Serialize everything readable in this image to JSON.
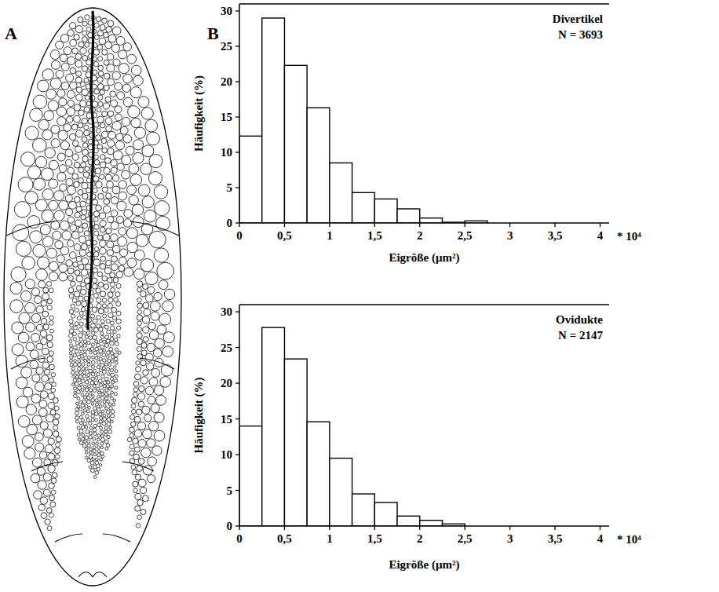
{
  "panel_labels": [
    "A",
    "B"
  ],
  "chart_data": [
    {
      "type": "histogram",
      "title": "Divertikel",
      "subtitle": "N = 3693",
      "x_label": "Eigröße (µm²)",
      "y_label": "Häufigkeit (%)",
      "annotation": "* 10⁴",
      "bins": [
        0,
        0.25,
        0.5,
        0.75,
        1,
        1.25,
        1.5,
        1.75,
        2,
        2.25,
        2.5,
        2.75,
        3,
        3.25,
        3.5,
        3.75,
        4
      ],
      "values": [
        12.3,
        29,
        22.3,
        16.3,
        8.5,
        4.3,
        3.4,
        2.0,
        0.7,
        0.1,
        0.3,
        0,
        0,
        0,
        0,
        0
      ],
      "color": "#ffffff",
      "xlim": [
        0,
        4.1
      ],
      "ylim": [
        0,
        31
      ],
      "xticks": [
        0,
        {
          "value": 0.5,
          "label": "0,5"
        },
        1,
        {
          "value": 1.5,
          "label": "1,5"
        },
        2,
        {
          "value": 2.5,
          "label": "2,5"
        },
        3,
        {
          "value": 3.5,
          "label": "3,5"
        },
        4
      ],
      "yticks": [
        0,
        5,
        10,
        15,
        20,
        25,
        30
      ],
      "grid": false
    },
    {
      "type": "histogram",
      "title": "Ovidukte",
      "subtitle": "N = 2147",
      "x_label": "Eigröße (µm²)",
      "y_label": "Häufigkeit (%)",
      "annotation": "* 10⁴",
      "bins": [
        0,
        0.25,
        0.5,
        0.75,
        1,
        1.25,
        1.5,
        1.75,
        2,
        2.25,
        2.5,
        2.75,
        3,
        3.25,
        3.5,
        3.75,
        4
      ],
      "values": [
        14,
        27.8,
        23.4,
        14.6,
        9.5,
        4.5,
        3.3,
        1.4,
        0.8,
        0.3,
        0,
        0,
        0,
        0,
        0,
        0
      ],
      "color": "#ffffff",
      "xlim": [
        0,
        4.1
      ],
      "ylim": [
        0,
        31
      ],
      "xticks": [
        0,
        {
          "value": 0.5,
          "label": "0,5"
        },
        1,
        {
          "value": 1.5,
          "label": "1,5"
        },
        2,
        {
          "value": 2.5,
          "label": "2,5"
        },
        3,
        {
          "value": 3.5,
          "label": "3,5"
        },
        4
      ],
      "yticks": [
        0,
        5,
        10,
        15,
        20,
        25,
        30
      ],
      "grid": false
    }
  ]
}
